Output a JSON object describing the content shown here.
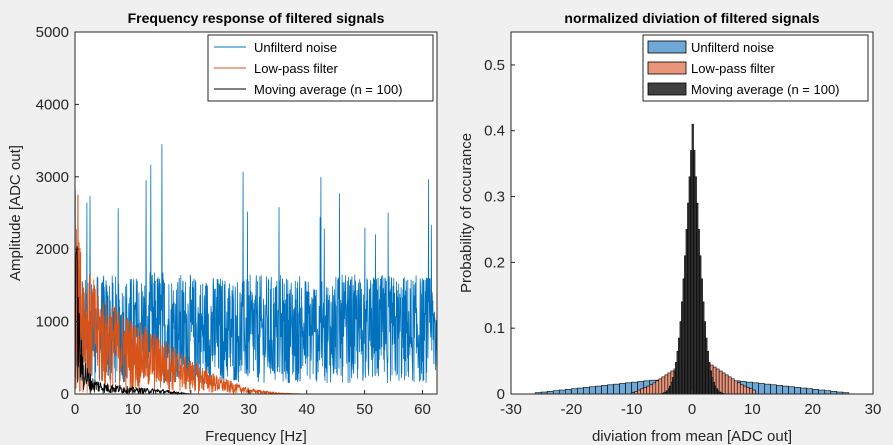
{
  "colors": {
    "figure_bg": "#f0f0f0",
    "axes_bg": "#ffffff",
    "axis": "#262626",
    "blue": "#0072BD",
    "orange": "#D95319",
    "black": "#000000",
    "hist_blue": "#6fa8d6",
    "hist_orange": "#e8957a",
    "hist_black": "#404040"
  },
  "chart_data": [
    {
      "type": "line",
      "title": "Frequency response of filtered signals",
      "xlabel": "Frequency [Hz]",
      "ylabel": "Amplitude [ADC out]",
      "xlim": [
        0,
        62.5
      ],
      "ylim": [
        0,
        5000
      ],
      "x_ticks": [
        0,
        10,
        20,
        30,
        40,
        50,
        60
      ],
      "y_ticks": [
        0,
        1000,
        2000,
        3000,
        4000,
        5000
      ],
      "x_tick_labels": [
        "0",
        "10",
        "20",
        "30",
        "40",
        "50",
        "60"
      ],
      "y_tick_labels": [
        "0",
        "1000",
        "2000",
        "3000",
        "4000",
        "5000"
      ],
      "legend_position": "top-right",
      "series": [
        {
          "name": "Unfilterd noise",
          "color": "#0072BD",
          "description": "broadband noise spectrum, roughly flat",
          "x": [
            0,
            2,
            5,
            10,
            15,
            20,
            25,
            30,
            35,
            40,
            45,
            50,
            55,
            60,
            62.5
          ],
          "y": [
            1000,
            1000,
            1000,
            1000,
            1050,
            1000,
            1000,
            1000,
            1000,
            1000,
            1000,
            1000,
            1000,
            1000,
            1000
          ],
          "peak": {
            "x": 15,
            "y": 3450
          },
          "typical_upper": 2400,
          "typical_lower": 150
        },
        {
          "name": "Low-pass filter",
          "color": "#D95319",
          "x": [
            0,
            2,
            5,
            10,
            15,
            20,
            25,
            30,
            35,
            40
          ],
          "y": [
            1500,
            1100,
            850,
            650,
            500,
            300,
            150,
            50,
            10,
            0
          ],
          "peak": {
            "x": 0.5,
            "y": 2750
          }
        },
        {
          "name": "Moving average (n = 100)",
          "color": "#000000",
          "x": [
            0,
            0.3,
            0.6,
            1,
            2,
            3,
            5,
            10,
            15,
            20
          ],
          "y": [
            1900,
            1400,
            900,
            500,
            250,
            150,
            100,
            60,
            40,
            0
          ],
          "peak": {
            "x": 0.2,
            "y": 1950
          }
        }
      ]
    },
    {
      "type": "histogram",
      "title": "normalized diviation of filtered signals",
      "xlabel": "diviation from mean [ADC out]",
      "ylabel": "Probability of occurance",
      "xlim": [
        -30,
        30
      ],
      "ylim": [
        0,
        0.55
      ],
      "x_ticks": [
        -30,
        -20,
        -10,
        0,
        10,
        20,
        30
      ],
      "y_ticks": [
        0,
        0.1,
        0.2,
        0.3,
        0.4,
        0.5
      ],
      "x_tick_labels": [
        "-30",
        "-20",
        "-10",
        "0",
        "10",
        "20",
        "30"
      ],
      "y_tick_labels": [
        "0",
        "0.1",
        "0.2",
        "0.3",
        "0.4",
        "0.5"
      ],
      "legend_position": "top-right",
      "series": [
        {
          "name": "Unfilterd noise",
          "color": "#6fa8d6",
          "bins": {
            "start": -26,
            "width": 1
          },
          "values": [
            0.002,
            0.003,
            0.004,
            0.005,
            0.006,
            0.007,
            0.008,
            0.009,
            0.01,
            0.011,
            0.012,
            0.013,
            0.014,
            0.015,
            0.016,
            0.017,
            0.018,
            0.019,
            0.02,
            0.021,
            0.021,
            0.022,
            0.022,
            0.022,
            0.023,
            0.023,
            0.023,
            0.023,
            0.022,
            0.022,
            0.022,
            0.021,
            0.021,
            0.02,
            0.019,
            0.018,
            0.017,
            0.016,
            0.015,
            0.014,
            0.013,
            0.012,
            0.011,
            0.01,
            0.009,
            0.008,
            0.007,
            0.006,
            0.005,
            0.004,
            0.003,
            0.002
          ]
        },
        {
          "name": "Low-pass filter",
          "color": "#e8957a",
          "bins": {
            "start": -10,
            "width": 0.5
          },
          "values": [
            0.002,
            0.004,
            0.006,
            0.008,
            0.01,
            0.012,
            0.014,
            0.017,
            0.02,
            0.023,
            0.026,
            0.029,
            0.032,
            0.035,
            0.038,
            0.041,
            0.044,
            0.047,
            0.05,
            0.053,
            0.055,
            0.056,
            0.055,
            0.053,
            0.05,
            0.047,
            0.044,
            0.041,
            0.038,
            0.035,
            0.032,
            0.029,
            0.026,
            0.023,
            0.02,
            0.017,
            0.014,
            0.012,
            0.01,
            0.008,
            0.006
          ]
        },
        {
          "name": "Moving average (n = 100)",
          "color": "#404040",
          "bins": {
            "start": -5,
            "width": 0.25
          },
          "values": [
            0.001,
            0.002,
            0.003,
            0.005,
            0.008,
            0.012,
            0.018,
            0.025,
            0.035,
            0.048,
            0.065,
            0.085,
            0.11,
            0.14,
            0.175,
            0.21,
            0.25,
            0.29,
            0.33,
            0.37,
            0.41,
            0.37,
            0.33,
            0.29,
            0.25,
            0.21,
            0.175,
            0.14,
            0.11,
            0.085,
            0.065,
            0.048,
            0.035,
            0.025,
            0.018,
            0.012,
            0.008,
            0.005,
            0.003,
            0.002,
            0.001
          ]
        }
      ]
    }
  ]
}
